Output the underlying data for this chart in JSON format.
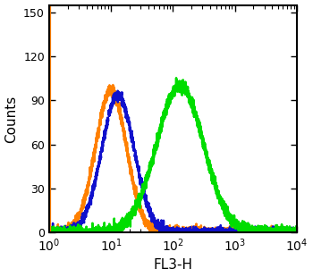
{
  "title": "",
  "xlabel": "FL3-H",
  "ylabel": "Counts",
  "xlim": [
    1,
    10000
  ],
  "ylim": [
    0,
    155
  ],
  "yticks": [
    0,
    30,
    60,
    90,
    120,
    150
  ],
  "background_color": "#ffffff",
  "border_color": "#000000",
  "orange_color": "#ff8000",
  "blue_color": "#1010cc",
  "green_color": "#00dd00",
  "orange_peak_x": 10,
  "orange_peak_y": 97,
  "orange_sigma": 0.25,
  "blue_peak_x": 13,
  "blue_peak_y": 93,
  "blue_sigma": 0.265,
  "green_peak_x": 130,
  "green_peak_y": 100,
  "green_sigma": 0.38,
  "linewidth": 1.8,
  "fig_width": 3.5,
  "fig_height": 3.1
}
